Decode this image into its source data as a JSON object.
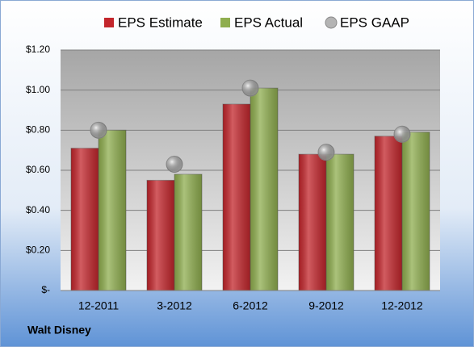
{
  "chart_data": {
    "type": "bar",
    "caption": "Walt Disney",
    "categories": [
      "12-2011",
      "3-2012",
      "6-2012",
      "9-2012",
      "12-2012"
    ],
    "series": [
      {
        "name": "EPS Estimate",
        "color": "#c3262c",
        "marker": "bar",
        "values": [
          0.71,
          0.55,
          0.93,
          0.68,
          0.77
        ]
      },
      {
        "name": "EPS Actual",
        "color": "#8fae4f",
        "marker": "bar",
        "values": [
          0.8,
          0.58,
          1.01,
          0.68,
          0.79
        ]
      },
      {
        "name": "EPS GAAP",
        "color": "#b4b4b4",
        "marker": "circle",
        "values": [
          0.8,
          0.63,
          1.01,
          0.69,
          0.78
        ]
      }
    ],
    "ylim": [
      0,
      1.2
    ],
    "yticks": [
      {
        "value": 0,
        "label": "$-"
      },
      {
        "value": 0.2,
        "label": "$0.20"
      },
      {
        "value": 0.4,
        "label": "$0.40"
      },
      {
        "value": 0.6,
        "label": "$0.60"
      },
      {
        "value": 0.8,
        "label": "$0.80"
      },
      {
        "value": 1.0,
        "label": "$1.00"
      },
      {
        "value": 1.2,
        "label": "$1.20"
      }
    ],
    "grid": true,
    "legend": "top"
  }
}
